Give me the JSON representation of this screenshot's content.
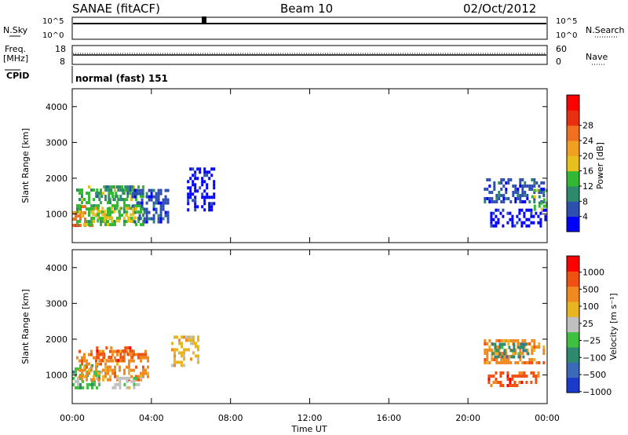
{
  "header": {
    "station": "SANAE (fitACF)",
    "beam": "Beam 10",
    "date": "02/Oct/2012"
  },
  "strips": {
    "nsky_label": "N.Sky",
    "nsky_ticks": [
      "10^5",
      "10^0"
    ],
    "nsearch_label": "N.Search",
    "nsearch_ticks": [
      "10^5",
      "10^0"
    ],
    "freq_label_1": "Freq.",
    "freq_label_2": "[MHz]",
    "freq_ticks": [
      "18",
      "8"
    ],
    "nave_label": "Nave",
    "nave_ticks": [
      "60",
      "0"
    ],
    "cpid_label": "CPID",
    "cpid_value": "normal (fast) 151"
  },
  "colors": {
    "power_scale": [
      "#0000ff",
      "#2d4fb0",
      "#2e8a6e",
      "#33b833",
      "#e8c01e",
      "#f2a020",
      "#f07020",
      "#e83010",
      "#ff0000"
    ],
    "velocity_scale": [
      "#1a3acc",
      "#3a6ab8",
      "#2e8a6e",
      "#40c040",
      "#c0c0c0",
      "#e8b420",
      "#f08a20",
      "#f05010",
      "#ff0000"
    ]
  },
  "chart_data": [
    {
      "type": "heatmap",
      "panel": "power",
      "ylabel": "Slant Range [km]",
      "y_ticks": [
        "1000",
        "2000",
        "3000",
        "4000"
      ],
      "ylim": [
        200,
        4500
      ],
      "colorbar_label": "Power [dB]",
      "colorbar_ticks": [
        "4",
        "8",
        "12",
        "16",
        "20",
        "24",
        "28"
      ],
      "regions": [
        {
          "t0": 0.0,
          "t1": 1.0,
          "r0": 650,
          "r1": 1250,
          "level": 6
        },
        {
          "t0": 0.2,
          "t1": 3.6,
          "r0": 700,
          "r1": 1800,
          "level": 3
        },
        {
          "t0": 1.0,
          "t1": 3.2,
          "r0": 800,
          "r1": 1200,
          "level": 4
        },
        {
          "t0": 1.2,
          "t1": 3.0,
          "r0": 1400,
          "r1": 1800,
          "level": 2
        },
        {
          "t0": 3.0,
          "t1": 4.8,
          "r0": 800,
          "r1": 1700,
          "level": 1
        },
        {
          "t0": 5.8,
          "t1": 7.2,
          "r0": 1100,
          "r1": 2300,
          "level": 0
        },
        {
          "t0": 20.8,
          "t1": 23.8,
          "r0": 1300,
          "r1": 2000,
          "level": 1
        },
        {
          "t0": 21.0,
          "t1": 23.9,
          "r0": 650,
          "r1": 1150,
          "level": 0
        },
        {
          "t0": 23.2,
          "t1": 24.0,
          "r0": 1100,
          "r1": 1700,
          "level": 3
        }
      ]
    },
    {
      "type": "heatmap",
      "panel": "velocity",
      "ylabel": "Slant Range [km]",
      "y_ticks": [
        "1000",
        "2000",
        "3000",
        "4000"
      ],
      "ylim": [
        200,
        4500
      ],
      "colorbar_label": "Velocity [m s⁻¹]",
      "colorbar_ticks": [
        "1000",
        "500",
        "100",
        "25",
        "−25",
        "−100",
        "−500",
        "−1000"
      ],
      "regions": [
        {
          "t0": 0.0,
          "t1": 1.5,
          "r0": 650,
          "r1": 1300,
          "level": 3
        },
        {
          "t0": 0.2,
          "t1": 3.8,
          "r0": 900,
          "r1": 1700,
          "level": 6
        },
        {
          "t0": 2.0,
          "t1": 3.5,
          "r0": 600,
          "r1": 950,
          "level": 4
        },
        {
          "t0": 1.2,
          "t1": 3.0,
          "r0": 1400,
          "r1": 1800,
          "level": 7
        },
        {
          "t0": 5.0,
          "t1": 6.5,
          "r0": 1300,
          "r1": 2100,
          "level": 5
        },
        {
          "t0": 20.8,
          "t1": 23.8,
          "r0": 1300,
          "r1": 2000,
          "level": 6
        },
        {
          "t0": 21.2,
          "t1": 23.0,
          "r0": 1500,
          "r1": 1900,
          "level": 2
        },
        {
          "t0": 21.0,
          "t1": 23.6,
          "r0": 700,
          "r1": 1100,
          "level": 7
        }
      ]
    }
  ],
  "xaxis": {
    "label": "Time UT",
    "ticks": [
      "00:00",
      "04:00",
      "08:00",
      "12:00",
      "16:00",
      "20:00",
      "00:00"
    ]
  }
}
